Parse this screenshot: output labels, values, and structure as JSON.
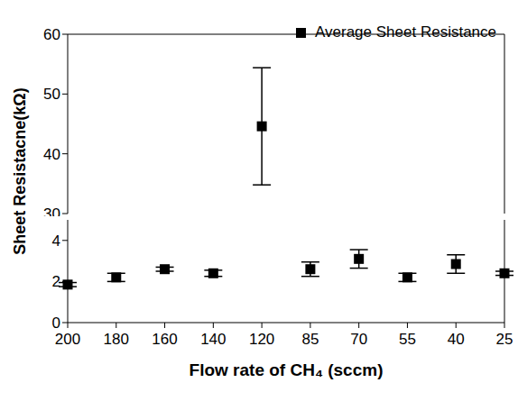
{
  "chart_data": [
    {
      "type": "scatter",
      "y_label": "Sheet Resistacne(kΩ)",
      "categories": [
        "200",
        "180",
        "160",
        "140",
        "120",
        "85",
        "70",
        "55",
        "40",
        "25"
      ],
      "series": [
        {
          "name": "Average Sheet Resistance",
          "color": "#000000",
          "marker": "square",
          "values": [
            null,
            null,
            null,
            null,
            44.6,
            null,
            null,
            null,
            null,
            null
          ],
          "errors": [
            null,
            null,
            null,
            null,
            9.8,
            null,
            null,
            null,
            null,
            null
          ]
        }
      ],
      "ylim": [
        30,
        60
      ],
      "yticks": [
        30,
        40,
        50,
        60
      ],
      "legend": "upper right",
      "tick_labels": "y"
    },
    {
      "type": "scatter",
      "x_label": "Flow rate of CH₄ (sccm)",
      "categories": [
        "200",
        "180",
        "160",
        "140",
        "120",
        "85",
        "70",
        "55",
        "40",
        "25"
      ],
      "series": [
        {
          "name": "Average Sheet Resistance",
          "color": "#000000",
          "marker": "square",
          "values": [
            1.85,
            2.2,
            2.6,
            2.4,
            null,
            2.6,
            3.1,
            2.2,
            2.85,
            2.4
          ],
          "errors": [
            0.1,
            0.2,
            0.1,
            0.15,
            null,
            0.35,
            0.45,
            0.2,
            0.45,
            0.1
          ]
        }
      ],
      "ylim": [
        0,
        5
      ],
      "yticks": [
        0,
        2,
        4
      ]
    }
  ]
}
